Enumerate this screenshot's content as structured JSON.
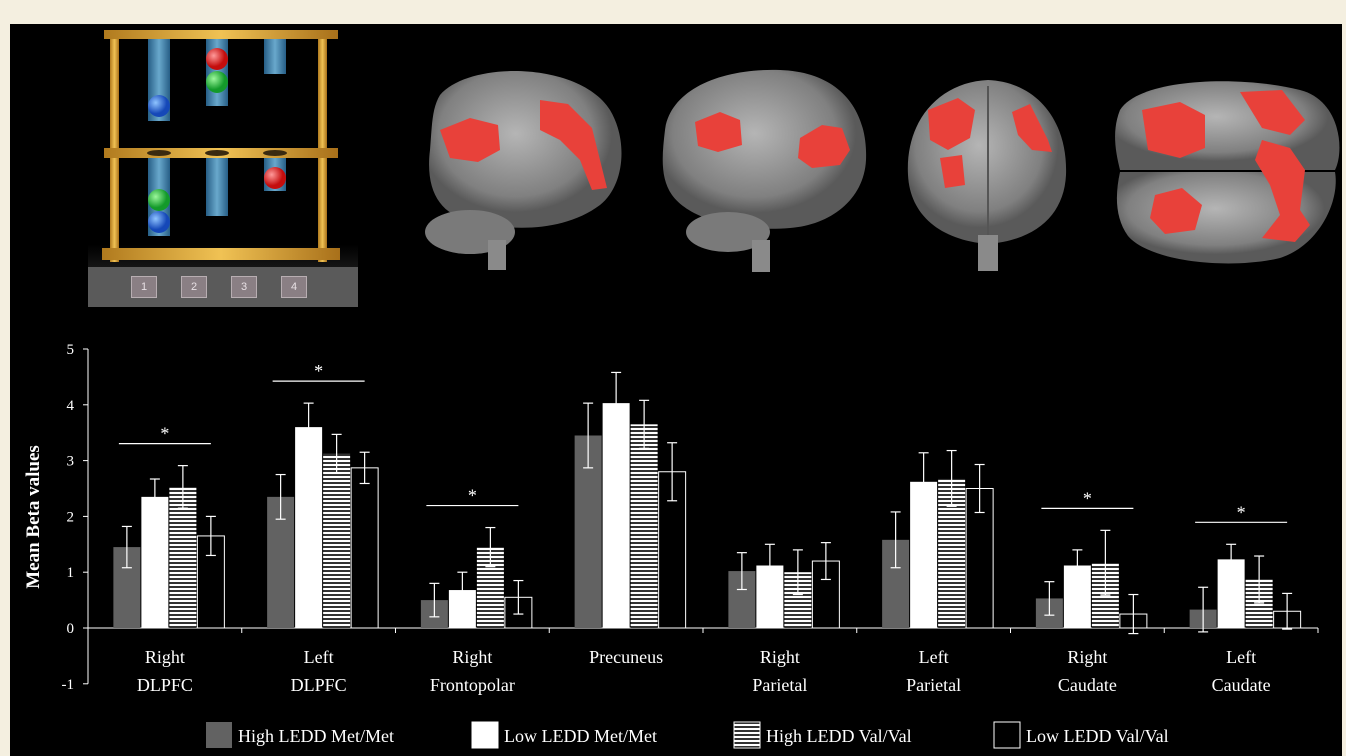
{
  "colors": {
    "high_met": "#626262",
    "low_met": "#ffffff",
    "background": "#000000",
    "activation": "#e8413a",
    "tube": "#6fb7e6",
    "rack": "#d9a63a"
  },
  "task": {
    "keys": [
      "1",
      "2",
      "3",
      "4"
    ]
  },
  "chart_data": {
    "type": "bar",
    "ylabel": "Mean Beta values",
    "ylim": [
      -1,
      5
    ],
    "yticks": [
      5,
      4,
      3,
      2,
      1,
      0,
      -1
    ],
    "categories": [
      {
        "line1": "Right",
        "line2": "DLPFC"
      },
      {
        "line1": "Left",
        "line2": "DLPFC"
      },
      {
        "line1": "Right",
        "line2": "Frontopolar"
      },
      {
        "line1": "Precuneus",
        "line2": ""
      },
      {
        "line1": "Right",
        "line2": "Parietal"
      },
      {
        "line1": "Left",
        "line2": "Parietal"
      },
      {
        "line1": "Right",
        "line2": "Caudate"
      },
      {
        "line1": "Left",
        "line2": "Caudate"
      }
    ],
    "series": [
      {
        "name": "High LEDD Met/Met",
        "style": "gray",
        "values": [
          1.45,
          2.35,
          0.5,
          3.45,
          1.02,
          1.58,
          0.53,
          0.33
        ],
        "errors": [
          0.37,
          0.4,
          0.3,
          0.58,
          0.33,
          0.5,
          0.3,
          0.4
        ]
      },
      {
        "name": "Low LEDD Met/Met",
        "style": "white",
        "values": [
          2.35,
          3.6,
          0.68,
          4.03,
          1.12,
          2.62,
          1.12,
          1.23
        ],
        "errors": [
          0.32,
          0.43,
          0.32,
          0.55,
          0.38,
          0.52,
          0.28,
          0.27
        ]
      },
      {
        "name": "High LEDD Val/Val",
        "style": "striped",
        "values": [
          2.53,
          3.12,
          1.45,
          3.65,
          1.0,
          2.68,
          1.17,
          0.87
        ],
        "errors": [
          0.38,
          0.35,
          0.35,
          0.43,
          0.4,
          0.5,
          0.58,
          0.42
        ]
      },
      {
        "name": "Low LEDD Val/Val",
        "style": "outline",
        "values": [
          1.65,
          2.87,
          0.55,
          2.8,
          1.2,
          2.5,
          0.25,
          0.3
        ],
        "errors": [
          0.35,
          0.28,
          0.3,
          0.52,
          0.33,
          0.43,
          0.35,
          0.32
        ]
      }
    ],
    "annotations": [
      {
        "category": 0,
        "label": "*"
      },
      {
        "category": 1,
        "label": "*"
      },
      {
        "category": 2,
        "label": "*"
      },
      {
        "category": 6,
        "label": "*"
      },
      {
        "category": 7,
        "label": "*"
      }
    ]
  }
}
